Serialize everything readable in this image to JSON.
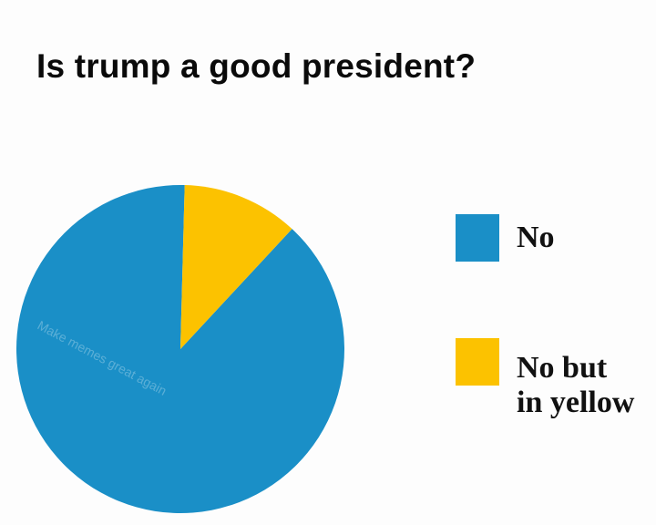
{
  "chart_data": {
    "type": "pie",
    "title": "Is trump a good president?",
    "slices": [
      {
        "label": "No",
        "value": 88.5,
        "color": "#1a8fc7"
      },
      {
        "label": "No but in yellow",
        "value": 11.5,
        "color": "#fcc200"
      }
    ],
    "legend": {
      "placement": "right",
      "entries": [
        {
          "label": "No",
          "color": "#1a8fc7"
        },
        {
          "label_lines": [
            "No but",
            "in yellow"
          ],
          "color": "#fcc200"
        }
      ]
    },
    "watermark": "Make memes great again"
  }
}
